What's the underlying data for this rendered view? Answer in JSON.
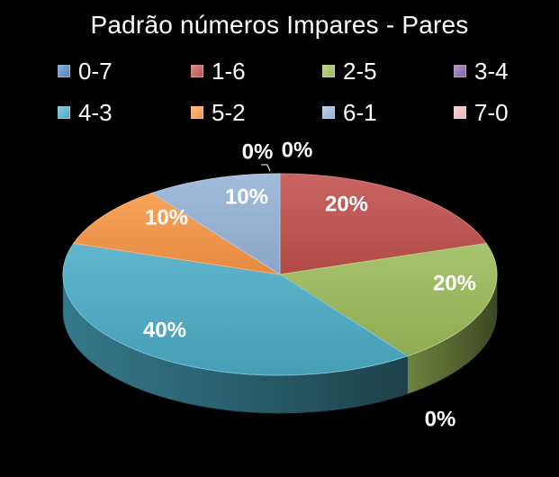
{
  "chart_data": {
    "type": "pie",
    "title": "Padrão números Impares - Pares",
    "categories": [
      "0-7",
      "1-6",
      "2-5",
      "3-4",
      "4-3",
      "5-2",
      "6-1",
      "7-0"
    ],
    "values": [
      0,
      20,
      20,
      0,
      40,
      10,
      10,
      0
    ],
    "data_labels": [
      "0%",
      "20%",
      "20%",
      "0%",
      "40%",
      "10%",
      "10%",
      "0%"
    ],
    "legend": "top",
    "colors": {
      "0-7": "#4f81bd",
      "1-6": "#c0504d",
      "2-5": "#9bbb59",
      "3-4": "#8064a2",
      "4-3": "#4bacc6",
      "5-2": "#f79646",
      "6-1": "#95b3d7",
      "7-0": "#e6b9b8"
    },
    "style": "3d-exploded-none",
    "background": "#000000"
  }
}
